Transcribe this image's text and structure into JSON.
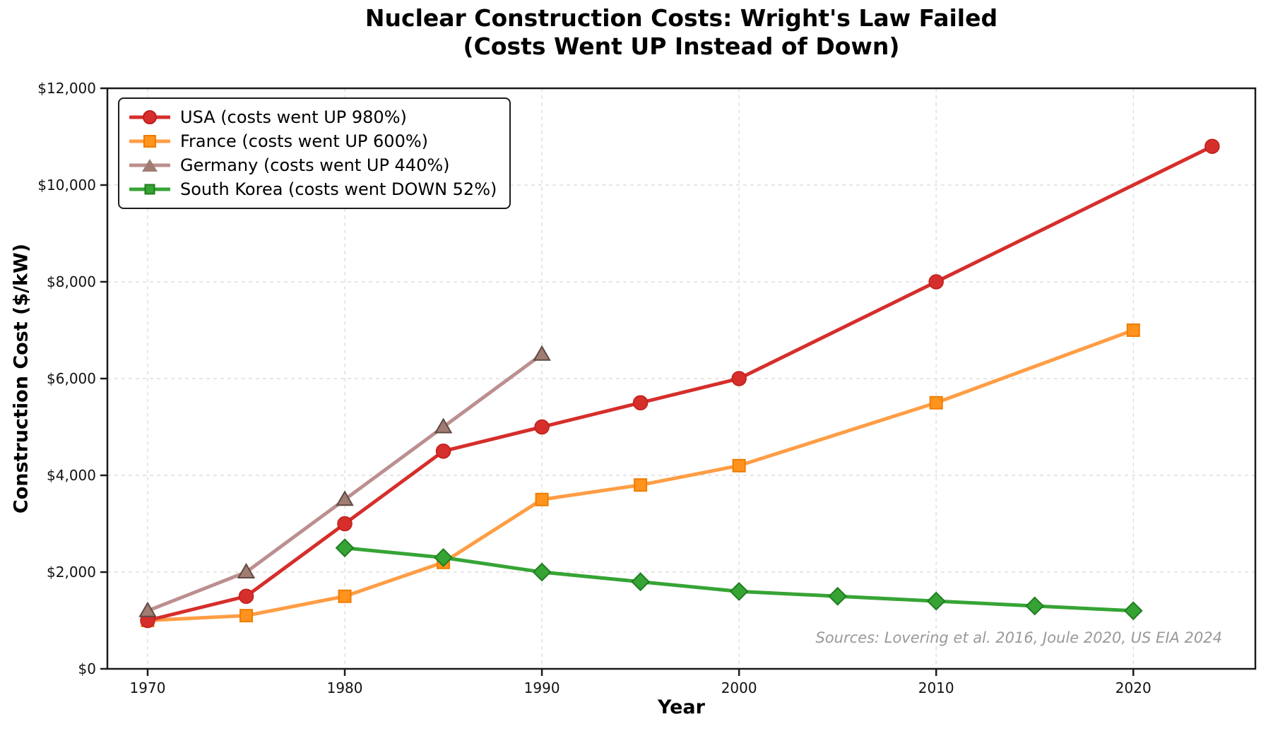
{
  "header": {
    "title_line1": "Nuclear Construction Costs: Wright's Law Failed",
    "title_line2": "(Costs Went UP Instead of Down)"
  },
  "chart_data": {
    "type": "line",
    "title": "Nuclear Construction Costs: Wright's Law Failed (Costs Went UP Instead of Down)",
    "xlabel": "Year",
    "ylabel": "Construction Cost ($/kW)",
    "source_note": "Sources: Lovering et al. 2016, Joule 2020, US EIA 2024",
    "grid": true,
    "legend_position": "upper-left",
    "xlim": [
      1967.5,
      2025.5
    ],
    "ylim": [
      0,
      12000
    ],
    "x_ticks": [
      1970,
      1980,
      1990,
      2000,
      2010,
      2020
    ],
    "x_tick_labels": [
      "1970",
      "1980",
      "1990",
      "2000",
      "2010",
      "2020"
    ],
    "y_ticks": [
      0,
      2000,
      4000,
      6000,
      8000,
      10000,
      12000
    ],
    "y_tick_labels": [
      "$0",
      "$2,000",
      "$4,000",
      "$6,000",
      "$8,000",
      "$10,000",
      "$12,000"
    ],
    "series": [
      {
        "name": "USA (costs went UP 980%)",
        "color": "#d62e2b",
        "marker": "circle",
        "marker_fill": "#d62e2b",
        "marker_edge": "#bd1f1c",
        "x": [
          1970,
          1975,
          1980,
          1985,
          1990,
          1995,
          2000,
          2010,
          2024
        ],
        "y": [
          1000,
          1500,
          3000,
          4500,
          5000,
          5500,
          6000,
          8000,
          10800
        ]
      },
      {
        "name": "France (costs went UP 600%)",
        "color": "#ff9d45",
        "marker": "square",
        "marker_fill": "#ff931e",
        "marker_edge": "#ef7d00",
        "x": [
          1970,
          1975,
          1980,
          1985,
          1990,
          1995,
          2000,
          2010,
          2020
        ],
        "y": [
          1000,
          1100,
          1500,
          2200,
          3500,
          3800,
          4200,
          5500,
          7000
        ]
      },
      {
        "name": "Germany (costs went UP 440%)",
        "color": "#bc8f8f",
        "marker": "triangle",
        "marker_fill": "#a17c73",
        "marker_edge": "#5f4a42",
        "x": [
          1970,
          1975,
          1980,
          1985,
          1990
        ],
        "y": [
          1200,
          2000,
          3500,
          5000,
          6500
        ]
      },
      {
        "name": "South Korea (costs went DOWN 52%)",
        "color": "#36a435",
        "marker": "diamond",
        "marker_fill": "#36a435",
        "marker_edge": "#1f7d1f",
        "x": [
          1980,
          1985,
          1990,
          1995,
          2000,
          2005,
          2010,
          2015,
          2020
        ],
        "y": [
          2500,
          2300,
          2000,
          1800,
          1600,
          1500,
          1400,
          1300,
          1200
        ]
      }
    ]
  },
  "colors": {
    "grid": "#dedede",
    "axis": "#1a1a1a",
    "source_text": "#999999",
    "background": "#ffffff"
  }
}
